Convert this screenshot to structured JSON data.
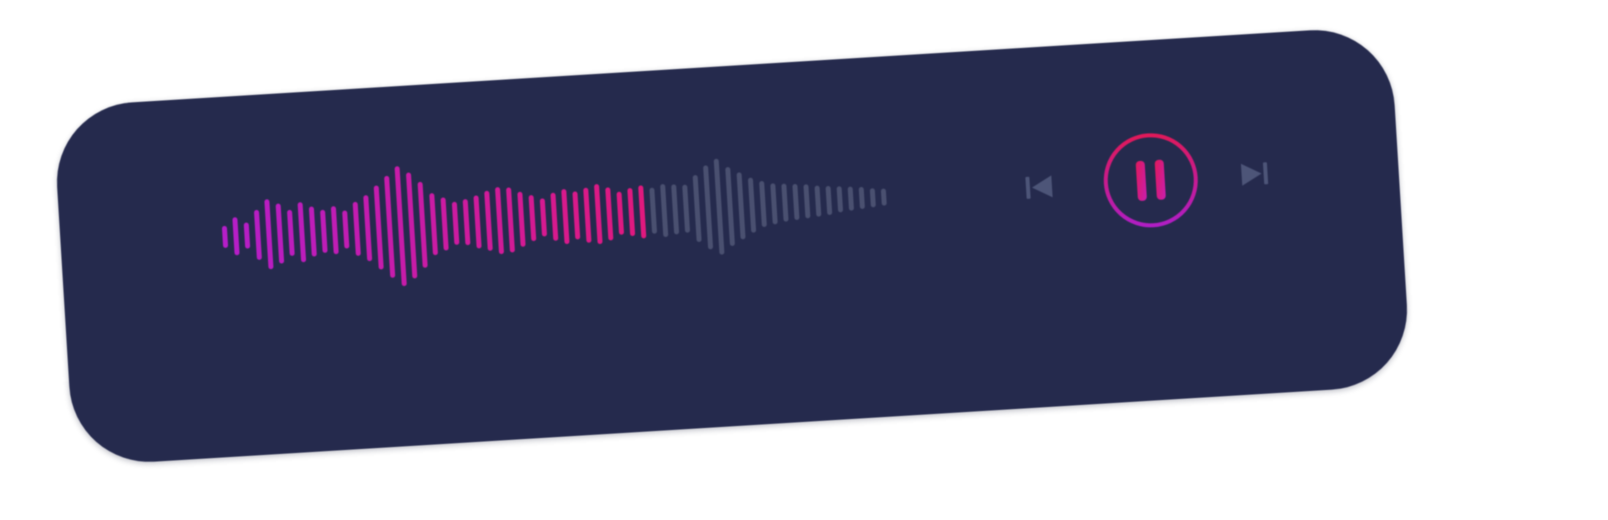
{
  "player": {
    "state": "playing",
    "progress": 0.64,
    "colors": {
      "card": "#252a4d",
      "played_start": "#b51ec9",
      "played_end": "#e0197e",
      "unplayed": "#4a5070",
      "control_dim": "#4d5578",
      "pause_ring_start": "#e0195a",
      "pause_ring_end": "#b01ec5"
    },
    "icons": {
      "previous": "skip-previous-icon",
      "pause": "pause-icon",
      "next": "skip-next-icon"
    },
    "waveform_levels": [
      0.18,
      0.32,
      0.22,
      0.42,
      0.58,
      0.5,
      0.38,
      0.5,
      0.42,
      0.36,
      0.4,
      0.32,
      0.45,
      0.55,
      0.7,
      0.85,
      1.0,
      0.88,
      0.72,
      0.52,
      0.44,
      0.36,
      0.38,
      0.44,
      0.5,
      0.56,
      0.54,
      0.46,
      0.38,
      0.32,
      0.4,
      0.46,
      0.4,
      0.46,
      0.5,
      0.44,
      0.36,
      0.4,
      0.44,
      0.38,
      0.44,
      0.42,
      0.4,
      0.56,
      0.7,
      0.8,
      0.66,
      0.56,
      0.46,
      0.38,
      0.34,
      0.32,
      0.3,
      0.28,
      0.26,
      0.24,
      0.22,
      0.2,
      0.18,
      0.16,
      0.14
    ]
  }
}
